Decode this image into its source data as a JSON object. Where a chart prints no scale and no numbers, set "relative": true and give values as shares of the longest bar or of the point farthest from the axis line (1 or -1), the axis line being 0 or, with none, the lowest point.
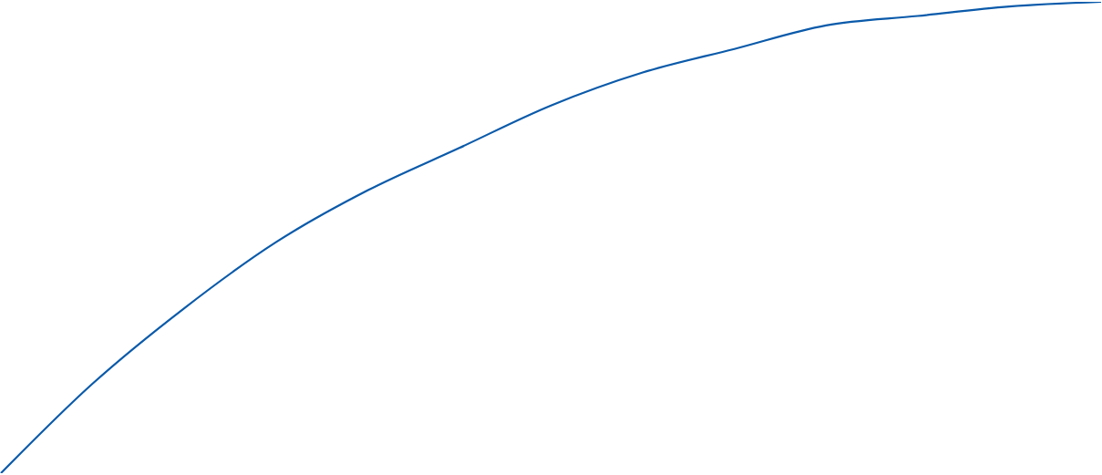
{
  "chart_data": {
    "type": "line",
    "relative": true,
    "categories": [
      null,
      null,
      null,
      null,
      null,
      null,
      null,
      null,
      null,
      null,
      null,
      null,
      null
    ],
    "series": [
      {
        "color": "#0a5aaa",
        "values": [
          0,
          0.19,
          0.35,
          0.49,
          0.6,
          0.69,
          0.78,
          0.85,
          0.9,
          0.95,
          0.97,
          0.99,
          1
        ]
      }
    ]
  }
}
